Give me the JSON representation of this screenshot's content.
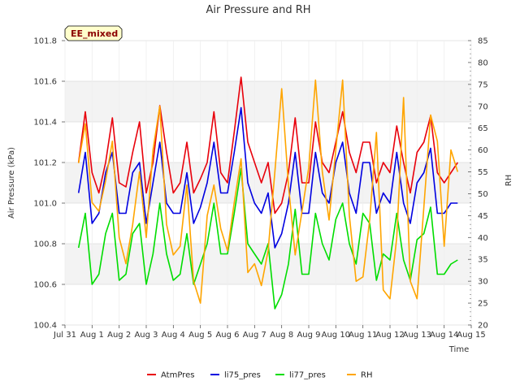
{
  "chart_data": {
    "type": "line",
    "title": "Air Pressure and RH",
    "badge": "EE_mixed",
    "xlabel": "Time",
    "ylabel": "Air Pressure (kPa)",
    "y2label": "RH",
    "x_ticks": [
      "Jul 31",
      "Aug 1",
      "Aug 2",
      "Aug 3",
      "Aug 4",
      "Aug 5",
      "Aug 6",
      "Aug 7",
      "Aug 8",
      "Aug 9",
      "Aug 10",
      "Aug 11",
      "Aug 12",
      "Aug 13",
      "Aug 14",
      "Aug 15"
    ],
    "xlim": [
      0,
      15
    ],
    "ylim": [
      100.4,
      101.8
    ],
    "y_ticks": [
      "100.4",
      "100.6",
      "100.8",
      "101.0",
      "101.2",
      "101.4",
      "101.6",
      "101.8"
    ],
    "y2lim": [
      20,
      85
    ],
    "y2_ticks": [
      "20",
      "25",
      "30",
      "35",
      "40",
      "45",
      "50",
      "55",
      "60",
      "65",
      "70",
      "75",
      "80",
      "85"
    ],
    "grid": true,
    "legend_position": "bottom",
    "x": [
      0.5,
      0.75,
      1,
      1.25,
      1.5,
      1.75,
      2,
      2.25,
      2.5,
      2.75,
      3,
      3.25,
      3.5,
      3.75,
      4,
      4.25,
      4.5,
      4.75,
      5,
      5.25,
      5.5,
      5.75,
      6,
      6.25,
      6.5,
      6.75,
      7,
      7.25,
      7.5,
      7.75,
      8,
      8.25,
      8.5,
      8.75,
      9,
      9.25,
      9.5,
      9.75,
      10,
      10.25,
      10.5,
      10.75,
      11,
      11.25,
      11.5,
      11.75,
      12,
      12.25,
      12.5,
      12.75,
      13,
      13.25,
      13.5,
      13.75,
      14,
      14.25,
      14.5
    ],
    "series": [
      {
        "name": "AtmPres",
        "color": "#e8000b",
        "axis": "left",
        "values": [
          101.2,
          101.45,
          101.15,
          101.05,
          101.2,
          101.42,
          101.1,
          101.08,
          101.25,
          101.4,
          101.05,
          101.2,
          101.48,
          101.25,
          101.05,
          101.1,
          101.3,
          101.05,
          101.12,
          101.2,
          101.45,
          101.15,
          101.1,
          101.35,
          101.62,
          101.3,
          101.2,
          101.1,
          101.2,
          100.95,
          101.0,
          101.15,
          101.42,
          101.1,
          101.1,
          101.4,
          101.2,
          101.15,
          101.3,
          101.45,
          101.25,
          101.15,
          101.3,
          101.3,
          101.1,
          101.2,
          101.15,
          101.38,
          101.2,
          101.05,
          101.25,
          101.3,
          101.43,
          101.15,
          101.1,
          101.15,
          101.2
        ]
      },
      {
        "name": "li75_pres",
        "color": "#0000e0",
        "axis": "left",
        "values": [
          101.05,
          101.25,
          100.9,
          100.95,
          101.15,
          101.25,
          100.95,
          100.95,
          101.15,
          101.2,
          100.9,
          101.1,
          101.3,
          101.0,
          100.95,
          100.95,
          101.15,
          100.9,
          100.98,
          101.1,
          101.3,
          101.05,
          101.05,
          101.25,
          101.47,
          101.1,
          101.0,
          100.95,
          101.05,
          100.78,
          100.85,
          101.0,
          101.25,
          100.95,
          100.95,
          101.25,
          101.05,
          101.0,
          101.2,
          101.3,
          101.05,
          100.95,
          101.2,
          101.2,
          100.95,
          101.05,
          101.0,
          101.25,
          101.0,
          100.9,
          101.1,
          101.15,
          101.27,
          100.95,
          100.95,
          101.0,
          101.0
        ]
      },
      {
        "name": "li77_pres",
        "color": "#00dd00",
        "axis": "left",
        "values": [
          100.78,
          100.95,
          100.6,
          100.65,
          100.85,
          100.95,
          100.62,
          100.65,
          100.85,
          100.9,
          100.6,
          100.75,
          101.0,
          100.75,
          100.62,
          100.65,
          100.85,
          100.6,
          100.7,
          100.8,
          101.0,
          100.75,
          100.75,
          100.95,
          101.17,
          100.8,
          100.75,
          100.7,
          100.8,
          100.48,
          100.55,
          100.7,
          100.97,
          100.65,
          100.65,
          100.95,
          100.8,
          100.72,
          100.92,
          101.0,
          100.8,
          100.7,
          100.95,
          100.9,
          100.62,
          100.75,
          100.72,
          100.95,
          100.72,
          100.62,
          100.82,
          100.85,
          100.98,
          100.65,
          100.65,
          100.7,
          100.72
        ]
      },
      {
        "name": "RH",
        "color": "#ffa500",
        "axis": "right",
        "values": [
          57,
          66,
          48,
          46,
          53,
          62,
          40,
          34,
          43,
          55,
          40,
          60,
          70,
          43,
          36,
          38,
          52,
          30,
          25,
          45,
          52,
          42,
          37,
          48,
          58,
          32,
          34,
          29,
          37,
          55,
          74,
          52,
          36,
          46,
          56,
          76,
          55,
          44,
          60,
          76,
          45,
          30,
          31,
          44,
          64,
          28,
          26,
          40,
          72,
          30,
          26,
          47,
          68,
          62,
          38,
          60,
          55
        ]
      }
    ]
  }
}
